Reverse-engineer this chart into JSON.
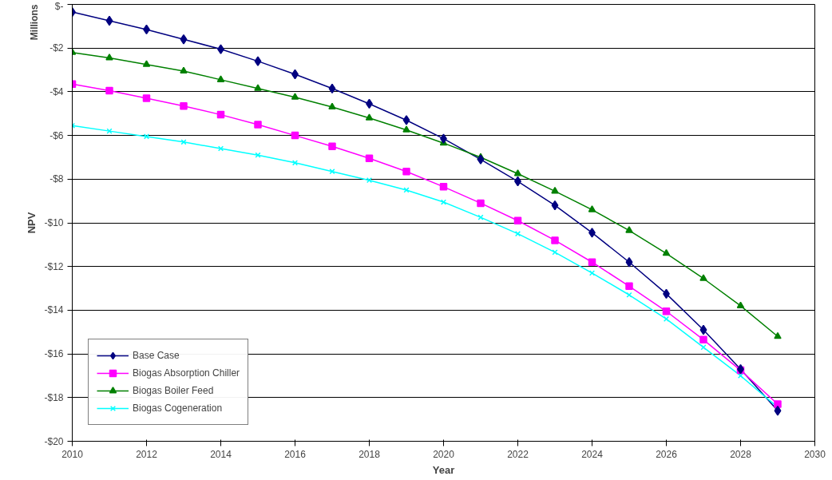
{
  "chart_data": {
    "type": "line",
    "xlabel": "Year",
    "ylabel": "NPV",
    "annotations": [
      "Millions"
    ],
    "x": [
      2010,
      2011,
      2012,
      2013,
      2014,
      2015,
      2016,
      2017,
      2018,
      2019,
      2020,
      2021,
      2022,
      2023,
      2024,
      2025,
      2026,
      2027,
      2028,
      2029
    ],
    "series": [
      {
        "name": "Base Case",
        "color": "#000080",
        "marker": "diamond",
        "values": [
          -0.35,
          -0.75,
          -1.15,
          -1.6,
          -2.05,
          -2.6,
          -3.2,
          -3.85,
          -4.55,
          -5.3,
          -6.15,
          -7.1,
          -8.1,
          -9.2,
          -10.45,
          -11.8,
          -13.25,
          -14.9,
          -16.7,
          -18.6
        ]
      },
      {
        "name": "Biogas Absorption Chiller",
        "color": "#ff00ff",
        "marker": "square",
        "values": [
          -3.65,
          -3.95,
          -4.3,
          -4.65,
          -5.05,
          -5.5,
          -6.0,
          -6.5,
          -7.05,
          -7.65,
          -8.35,
          -9.1,
          -9.9,
          -10.8,
          -11.8,
          -12.9,
          -14.05,
          -15.35,
          -16.75,
          -18.3
        ]
      },
      {
        "name": "Biogas Boiler Feed",
        "color": "#008000",
        "marker": "triangle",
        "values": [
          -2.2,
          -2.45,
          -2.75,
          -3.05,
          -3.45,
          -3.85,
          -4.25,
          -4.7,
          -5.2,
          -5.75,
          -6.35,
          -7.0,
          -7.75,
          -8.55,
          -9.4,
          -10.35,
          -11.4,
          -12.55,
          -13.8,
          -15.2
        ]
      },
      {
        "name": "Biogas Cogeneration",
        "color": "#00ffff",
        "marker": "cross",
        "values": [
          -5.55,
          -5.8,
          -6.05,
          -6.3,
          -6.6,
          -6.9,
          -7.25,
          -7.65,
          -8.05,
          -8.5,
          -9.05,
          -9.75,
          -10.5,
          -11.35,
          -12.3,
          -13.3,
          -14.4,
          -15.7,
          -17.0,
          -18.45
        ]
      }
    ],
    "xlim": [
      2010,
      2030
    ],
    "xticks": [
      2010,
      2012,
      2014,
      2016,
      2018,
      2020,
      2022,
      2024,
      2026,
      2028,
      2030
    ],
    "ylim": [
      -20,
      0
    ],
    "yticks": [
      {
        "value": -20,
        "label": "-$20"
      },
      {
        "value": -18,
        "label": "-$18"
      },
      {
        "value": -16,
        "label": "-$16"
      },
      {
        "value": -14,
        "label": "-$14"
      },
      {
        "value": -12,
        "label": "-$12"
      },
      {
        "value": -10,
        "label": "-$10"
      },
      {
        "value": -8,
        "label": "-$8"
      },
      {
        "value": -6,
        "label": "-$6"
      },
      {
        "value": -4,
        "label": "-$4"
      },
      {
        "value": -2,
        "label": "-$2"
      },
      {
        "value": 0,
        "label": "$-"
      }
    ],
    "grid": "y",
    "legend": "bottom left",
    "line_style": "solid"
  }
}
